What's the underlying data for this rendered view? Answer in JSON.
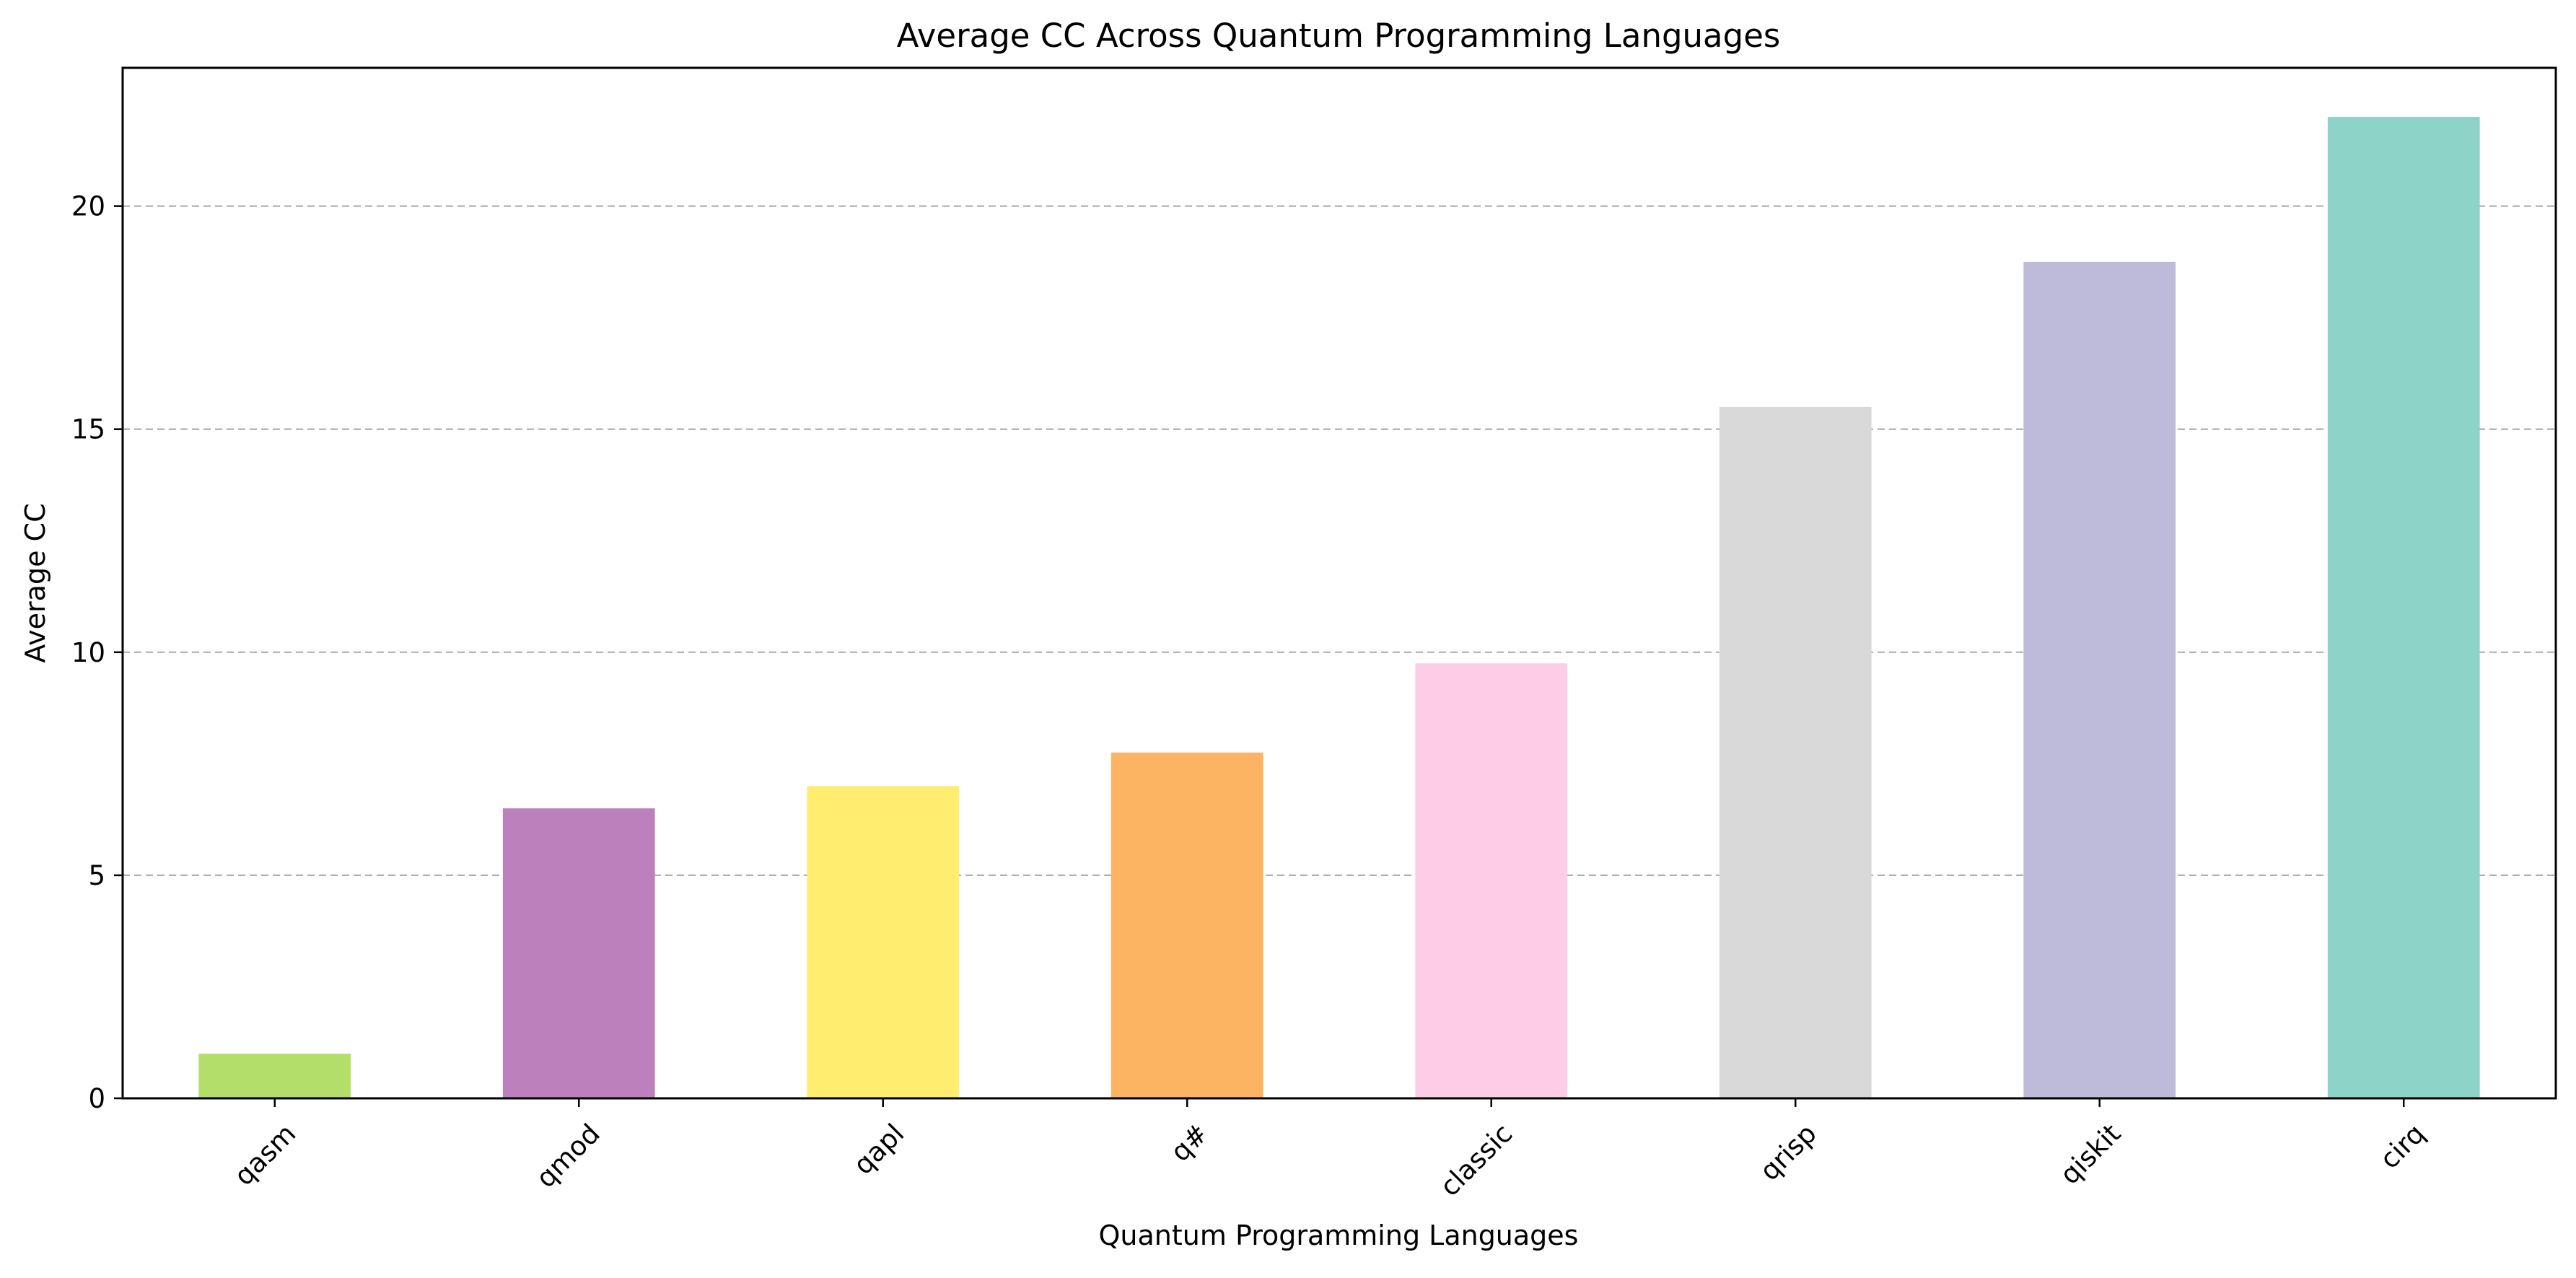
{
  "chart_data": {
    "type": "bar",
    "title": "Average CC Across Quantum Programming Languages",
    "xlabel": "Quantum Programming Languages",
    "ylabel": "Average CC",
    "categories": [
      "qasm",
      "qmod",
      "qapl",
      "q#",
      "classic",
      "qrisp",
      "qiskit",
      "cirq"
    ],
    "values": [
      1.0,
      6.5,
      7.0,
      7.75,
      9.75,
      15.5,
      18.75,
      22.0
    ],
    "bar_colors": [
      "#b3de69",
      "#bc80bd",
      "#ffed6f",
      "#fdb462",
      "#fccde5",
      "#d9d9d9",
      "#bebada",
      "#8dd3c7"
    ],
    "ylim": [
      0,
      23.1
    ],
    "yticks": [
      0,
      5,
      10,
      15,
      20
    ],
    "grid": "y-dashed",
    "legend": "none",
    "x_tick_rotation_deg": 45
  }
}
